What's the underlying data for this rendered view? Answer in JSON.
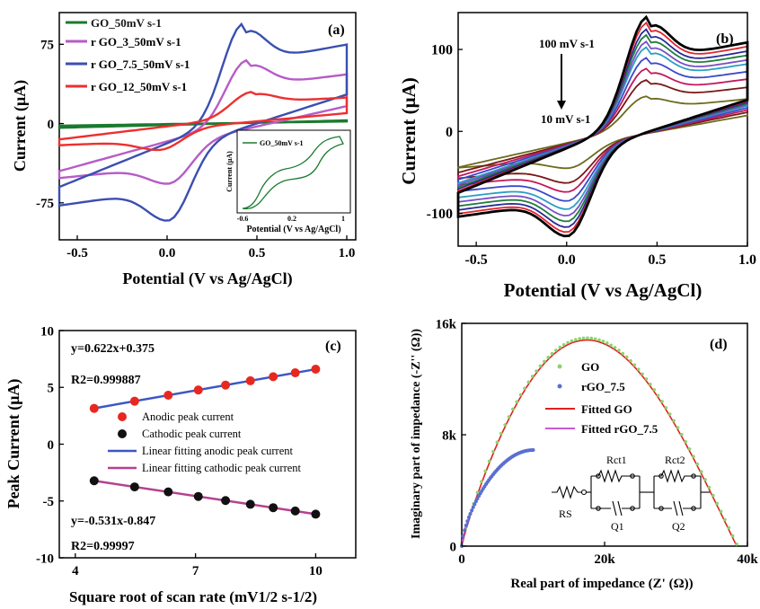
{
  "figure": "multi-panel electrochemistry figure",
  "panels": {
    "a": {
      "panel_label": "(a)",
      "xlabel": "Potential (V vs Ag/AgCl)",
      "ylabel": "Current (μA)",
      "x_ticks": [
        "-0.5",
        "0.0",
        "0.5",
        "1.0"
      ],
      "y_ticks": [
        "-75",
        "0",
        "75"
      ],
      "legend": [
        "GO_50mV s-1",
        "r GO_3_50mV s-1",
        "r GO_7.5_50mV s-1",
        "r GO_12_50mV s-1"
      ],
      "inset": {
        "legend": "GO_50mV s-1",
        "xlabel": "Potential (V vs Ag/AgCl)",
        "ylabel": "Current (μA)",
        "x_ticks": [
          "-0.6",
          "0.2",
          "1"
        ]
      }
    },
    "b": {
      "panel_label": "(b)",
      "xlabel": "Potential (V vs Ag/AgCl)",
      "ylabel": "Current (μA)",
      "x_ticks": [
        "-0.5",
        "0.0",
        "0.5",
        "1.0"
      ],
      "y_ticks": [
        "100",
        "0",
        "-100"
      ],
      "annotation_top": "100 mV s-1",
      "annotation_bottom": "10 mV s-1"
    },
    "c": {
      "panel_label": "(c)",
      "xlabel": "Square root of scan rate (mV1/2 s-1/2)",
      "ylabel": "Peak Current (μA)",
      "x_ticks": [
        "4",
        "7",
        "10"
      ],
      "y_ticks": [
        "10",
        "5",
        "0",
        "-5",
        "-10"
      ],
      "eq_anodic": "y=0.622x+0.375",
      "r2_anodic": "R2=0.999887",
      "eq_cathodic": "y=-0.531x-0.847",
      "r2_cathodic": "R2=0.99997",
      "legend": [
        "Anodic peak current",
        "Cathodic peak current",
        "Linear fitting anodic peak current",
        "Linear fitting cathodic peak current"
      ]
    },
    "d": {
      "panel_label": "(d)",
      "xlabel": "Real part of impedance (Z' (Ω))",
      "ylabel": "Imaginary part of impedance (-Z'' (Ω))",
      "x_ticks": [
        "0",
        "20k",
        "40k"
      ],
      "y_ticks": [
        "0",
        "8k",
        "16k"
      ],
      "legend": [
        "GO",
        "rGO_7.5",
        "Fitted GO",
        "Fitted  rGO_7.5"
      ],
      "circuit_labels": {
        "rs": "RS",
        "rct1": "Rct1",
        "rct2": "Rct2",
        "q1": "Q1",
        "q2": "Q2"
      }
    }
  },
  "colors": {
    "go": "#1a7a2e",
    "rgo3": "#b65cc6",
    "rgo75": "#3a4fb0",
    "rgo12": "#ee2f2f",
    "anodic": "#e8281f",
    "cathodic": "#111111",
    "fit_anodic": "#3b57c4",
    "fit_cathodic": "#b5418f",
    "eis_go": "#8bd46a",
    "eis_rgo": "#5a6fd0",
    "fit_go": "#e02020",
    "fit_rgo": "#c85ad6",
    "b_series": [
      "#6b6b1e",
      "#7a1616",
      "#c2185b",
      "#3a48c9",
      "#2a9fc4",
      "#7a4fc7",
      "#1e7d3a",
      "#2a2a9a",
      "#e2242b",
      "#000000"
    ]
  },
  "chart_data": [
    {
      "panel": "a",
      "type": "line",
      "xlabel": "Potential (V vs Ag/AgCl)",
      "ylabel": "Current (μA)",
      "xlim": [
        -0.6,
        1.05
      ],
      "ylim": [
        -110,
        105
      ],
      "series": [
        {
          "name": "GO_50mV s-1",
          "anodic_peak": {
            "x": 0.45,
            "y": 0
          },
          "cathodic_peak": {
            "x": 0.0,
            "y": 0
          },
          "ends": {
            "x": -0.6,
            "y_low": -5,
            "x_end": 1.0,
            "y_high": 5
          }
        },
        {
          "name": "r GO_3_50mV s-1",
          "anodic_peak": {
            "x": 0.45,
            "y": 60
          },
          "cathodic_peak": {
            "x": 0.0,
            "y": -57
          },
          "ends": {
            "x": -0.6,
            "y_low": -45,
            "x_end": 1.0,
            "y_high": 30
          }
        },
        {
          "name": "r GO_7.5_50mV s-1",
          "anodic_peak": {
            "x": 0.43,
            "y": 95
          },
          "cathodic_peak": {
            "x": 0.0,
            "y": -92
          },
          "ends": {
            "x": -0.6,
            "y_low": -60,
            "x_end": 1.0,
            "y_high": 50
          }
        },
        {
          "name": "r GO_12_50mV s-1",
          "anodic_peak": {
            "x": 0.48,
            "y": 30
          },
          "cathodic_peak": {
            "x": -0.05,
            "y": -25
          },
          "ends": {
            "x": -0.6,
            "y_low": -15,
            "x_end": 1.0,
            "y_high": 18
          }
        }
      ],
      "inset": {
        "type": "line",
        "name": "GO_50mV s-1",
        "xlim": [
          -0.6,
          1.0
        ]
      }
    },
    {
      "panel": "b",
      "type": "line",
      "xlabel": "Potential (V vs Ag/AgCl)",
      "ylabel": "Current (μA)",
      "xlim": [
        -0.6,
        1.0
      ],
      "ylim": [
        -140,
        145
      ],
      "scan_rates_mV_s": [
        10,
        20,
        30,
        40,
        50,
        60,
        70,
        80,
        90,
        100
      ],
      "anodic_peaks_uA": [
        43,
        63,
        77,
        90,
        103,
        110,
        118,
        125,
        133,
        140
      ],
      "cathodic_peaks_uA": [
        -45,
        -63,
        -74,
        -85,
        -95,
        -103,
        -110,
        -117,
        -123,
        -128
      ],
      "anodic_peak_potential_V": 0.45,
      "cathodic_peak_potential_V": 0.0
    },
    {
      "panel": "c",
      "type": "scatter",
      "xlabel": "Square root of scan rate (mV1/2 s-1/2)",
      "ylabel": "Peak Current (μA)",
      "xlim": [
        4,
        11
      ],
      "ylim": [
        -10,
        10
      ],
      "x": [
        4.47,
        5.48,
        6.32,
        7.07,
        7.75,
        8.37,
        8.94,
        9.49,
        10.0
      ],
      "series": [
        {
          "name": "Anodic peak current",
          "values": [
            3.15,
            3.78,
            4.31,
            4.77,
            5.2,
            5.58,
            5.94,
            6.28,
            6.6
          ]
        },
        {
          "name": "Cathodic peak current",
          "values": [
            -3.22,
            -3.76,
            -4.2,
            -4.6,
            -4.96,
            -5.29,
            -5.59,
            -5.88,
            -6.16
          ]
        }
      ],
      "fits": [
        {
          "name": "Linear fitting anodic peak current",
          "slope": 0.622,
          "intercept": 0.375
        },
        {
          "name": "Linear fitting cathodic peak current",
          "slope": -0.531,
          "intercept": -0.847
        }
      ]
    },
    {
      "panel": "d",
      "type": "scatter",
      "xlabel": "Real part of impedance (Z' (Ω))",
      "ylabel": "Imaginary part of impedance (-Z'' (Ω))",
      "xlim": [
        0,
        40000
      ],
      "ylim": [
        0,
        16000
      ],
      "series": [
        {
          "name": "GO",
          "start": 0,
          "end": 38500,
          "peak": {
            "x": 20000,
            "y": 14800
          }
        },
        {
          "name": "rGO_7.5",
          "start": 0,
          "end": 10000,
          "end_y": 6900
        }
      ]
    }
  ]
}
